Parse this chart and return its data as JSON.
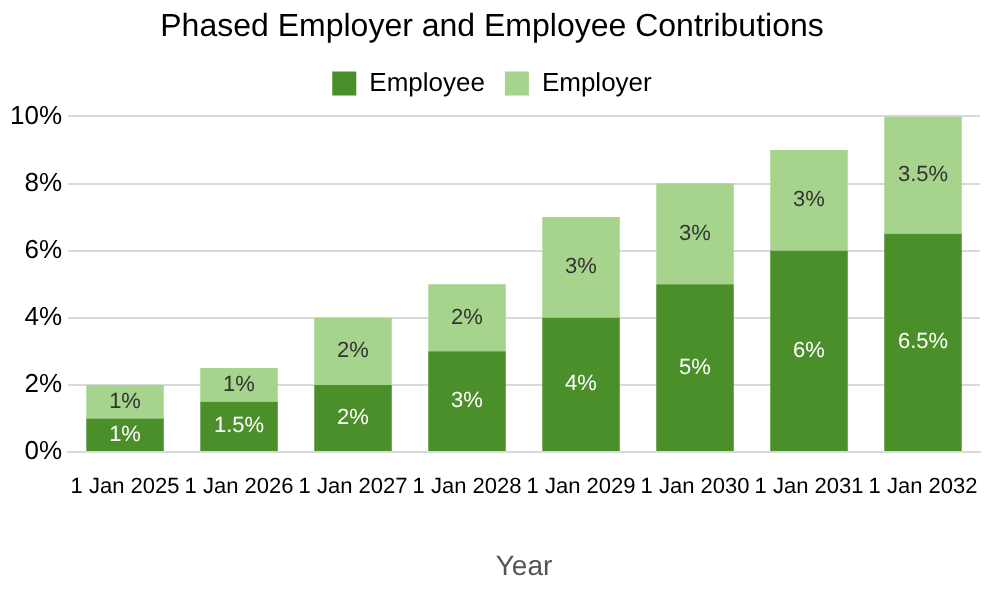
{
  "chart_data": {
    "type": "bar",
    "title": "Phased Employer and Employee Contributions",
    "xlabel": "Year",
    "categories": [
      "1 Jan 2025",
      "1 Jan 2026",
      "1 Jan 2027",
      "1 Jan 2028",
      "1 Jan 2029",
      "1 Jan 2030",
      "1 Jan 2031",
      "1 Jan 2032"
    ],
    "series": [
      {
        "name": "Employee",
        "color": "#4a8f2a",
        "values": [
          1,
          1.5,
          2,
          3,
          4,
          5,
          6,
          6.5
        ],
        "value_labels": [
          "1%",
          "1.5%",
          "2%",
          "3%",
          "4%",
          "5%",
          "6%",
          "6.5%"
        ]
      },
      {
        "name": "Employer",
        "color": "#a6d48c",
        "values": [
          1,
          1,
          2,
          2,
          3,
          3,
          3,
          3.5
        ],
        "value_labels": [
          "1%",
          "1%",
          "2%",
          "2%",
          "3%",
          "3%",
          "3%",
          "3.5%"
        ]
      }
    ],
    "stacked": true,
    "ylim": [
      0,
      10
    ],
    "yticks": [
      {
        "value": 0,
        "label": "0%"
      },
      {
        "value": 2,
        "label": "2%"
      },
      {
        "value": 4,
        "label": "4%"
      },
      {
        "value": 6,
        "label": "6%"
      },
      {
        "value": 8,
        "label": "8%"
      },
      {
        "value": 10,
        "label": "10%"
      }
    ],
    "grid": "y",
    "legend": "top"
  }
}
